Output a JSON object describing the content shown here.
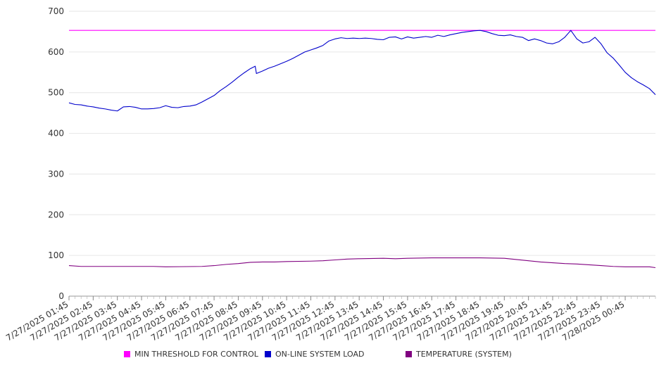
{
  "chart_data": {
    "type": "line",
    "title": "",
    "xlabel": "",
    "ylabel": "",
    "ylim": [
      0,
      700
    ],
    "yticks": [
      0,
      100,
      200,
      300,
      400,
      500,
      600,
      700
    ],
    "x_tick_labels": [
      "7/27/2025 01:45",
      "7/27/2025 02:45",
      "7/27/2025 03:45",
      "7/27/2025 04:45",
      "7/27/2025 05:45",
      "7/27/2025 06:45",
      "7/27/2025 07:45",
      "7/27/2025 08:45",
      "7/27/2025 09:45",
      "7/27/2025 10:45",
      "7/27/2025 11:45",
      "7/27/2025 12:45",
      "7/27/2025 13:45",
      "7/27/2025 14:45",
      "7/27/2025 15:45",
      "7/27/2025 16:45",
      "7/27/2025 17:45",
      "7/27/2025 18:45",
      "7/27/2025 19:45",
      "7/27/2025 20:45",
      "7/27/2025 21:45",
      "7/27/2025 22:45",
      "7/27/2025 23:45",
      "7/28/2025 00:45"
    ],
    "x_range_hours": [
      0,
      24.25
    ],
    "grid": true,
    "legend_position": "bottom",
    "series": [
      {
        "name": "MIN THRESHOLD FOR CONTROL",
        "color": "#ff00ff",
        "points": [
          [
            0,
            653
          ],
          [
            24.25,
            653
          ]
        ]
      },
      {
        "name": "ON-LINE SYSTEM LOAD",
        "color": "#0000cc",
        "points": [
          [
            0,
            475
          ],
          [
            0.25,
            471
          ],
          [
            0.5,
            470
          ],
          [
            0.75,
            467
          ],
          [
            1.0,
            465
          ],
          [
            1.25,
            462
          ],
          [
            1.5,
            460
          ],
          [
            1.75,
            457
          ],
          [
            2.0,
            455
          ],
          [
            2.25,
            465
          ],
          [
            2.5,
            466
          ],
          [
            2.75,
            464
          ],
          [
            3.0,
            460
          ],
          [
            3.25,
            460
          ],
          [
            3.5,
            461
          ],
          [
            3.75,
            463
          ],
          [
            4.0,
            468
          ],
          [
            4.25,
            464
          ],
          [
            4.5,
            463
          ],
          [
            4.75,
            466
          ],
          [
            5.0,
            467
          ],
          [
            5.25,
            470
          ],
          [
            5.5,
            477
          ],
          [
            5.75,
            485
          ],
          [
            6.0,
            493
          ],
          [
            6.25,
            505
          ],
          [
            6.5,
            515
          ],
          [
            6.75,
            526
          ],
          [
            7.0,
            538
          ],
          [
            7.25,
            549
          ],
          [
            7.5,
            559
          ],
          [
            7.7,
            565
          ],
          [
            7.75,
            547
          ],
          [
            8.0,
            553
          ],
          [
            8.25,
            560
          ],
          [
            8.5,
            565
          ],
          [
            8.75,
            571
          ],
          [
            9.0,
            577
          ],
          [
            9.25,
            584
          ],
          [
            9.5,
            592
          ],
          [
            9.75,
            600
          ],
          [
            10.0,
            605
          ],
          [
            10.25,
            610
          ],
          [
            10.5,
            616
          ],
          [
            10.75,
            627
          ],
          [
            11.0,
            632
          ],
          [
            11.25,
            635
          ],
          [
            11.5,
            633
          ],
          [
            11.75,
            634
          ],
          [
            12.0,
            633
          ],
          [
            12.25,
            634
          ],
          [
            12.5,
            633
          ],
          [
            12.75,
            631
          ],
          [
            13.0,
            630
          ],
          [
            13.25,
            636
          ],
          [
            13.5,
            637
          ],
          [
            13.75,
            632
          ],
          [
            14.0,
            637
          ],
          [
            14.25,
            634
          ],
          [
            14.5,
            636
          ],
          [
            14.75,
            638
          ],
          [
            15.0,
            636
          ],
          [
            15.25,
            641
          ],
          [
            15.5,
            638
          ],
          [
            15.75,
            642
          ],
          [
            16.0,
            645
          ],
          [
            16.25,
            648
          ],
          [
            16.5,
            650
          ],
          [
            16.75,
            652
          ],
          [
            17.0,
            653
          ],
          [
            17.25,
            650
          ],
          [
            17.5,
            645
          ],
          [
            17.75,
            641
          ],
          [
            18.0,
            640
          ],
          [
            18.25,
            642
          ],
          [
            18.5,
            638
          ],
          [
            18.75,
            636
          ],
          [
            19.0,
            628
          ],
          [
            19.25,
            632
          ],
          [
            19.5,
            628
          ],
          [
            19.75,
            622
          ],
          [
            20.0,
            620
          ],
          [
            20.25,
            625
          ],
          [
            20.5,
            636
          ],
          [
            20.75,
            653
          ],
          [
            21.0,
            632
          ],
          [
            21.25,
            622
          ],
          [
            21.5,
            625
          ],
          [
            21.75,
            636
          ],
          [
            22.0,
            620
          ],
          [
            22.25,
            598
          ],
          [
            22.5,
            585
          ],
          [
            22.75,
            568
          ],
          [
            23.0,
            550
          ],
          [
            23.25,
            537
          ],
          [
            23.5,
            527
          ],
          [
            23.75,
            519
          ],
          [
            24.0,
            510
          ],
          [
            24.25,
            495
          ]
        ]
      },
      {
        "name": "TEMPERATURE (SYSTEM)",
        "color": "#800080",
        "points": [
          [
            0,
            75
          ],
          [
            0.5,
            73
          ],
          [
            3.5,
            73
          ],
          [
            4.0,
            72
          ],
          [
            5.5,
            73
          ],
          [
            6.0,
            75
          ],
          [
            6.5,
            78
          ],
          [
            7.0,
            80
          ],
          [
            7.5,
            83
          ],
          [
            8.0,
            84
          ],
          [
            8.5,
            84
          ],
          [
            9.0,
            85
          ],
          [
            10.0,
            86
          ],
          [
            10.5,
            87
          ],
          [
            11.0,
            89
          ],
          [
            11.5,
            91
          ],
          [
            12.0,
            92
          ],
          [
            13.0,
            93
          ],
          [
            13.5,
            92
          ],
          [
            14.0,
            93
          ],
          [
            15.0,
            94
          ],
          [
            16.0,
            94
          ],
          [
            17.0,
            94
          ],
          [
            18.0,
            93
          ],
          [
            18.5,
            90
          ],
          [
            19.0,
            87
          ],
          [
            19.5,
            84
          ],
          [
            20.0,
            82
          ],
          [
            20.5,
            80
          ],
          [
            21.0,
            79
          ],
          [
            21.5,
            77
          ],
          [
            22.0,
            75
          ],
          [
            22.5,
            73
          ],
          [
            23.0,
            72
          ],
          [
            24.0,
            72
          ],
          [
            24.25,
            70
          ]
        ]
      }
    ]
  }
}
